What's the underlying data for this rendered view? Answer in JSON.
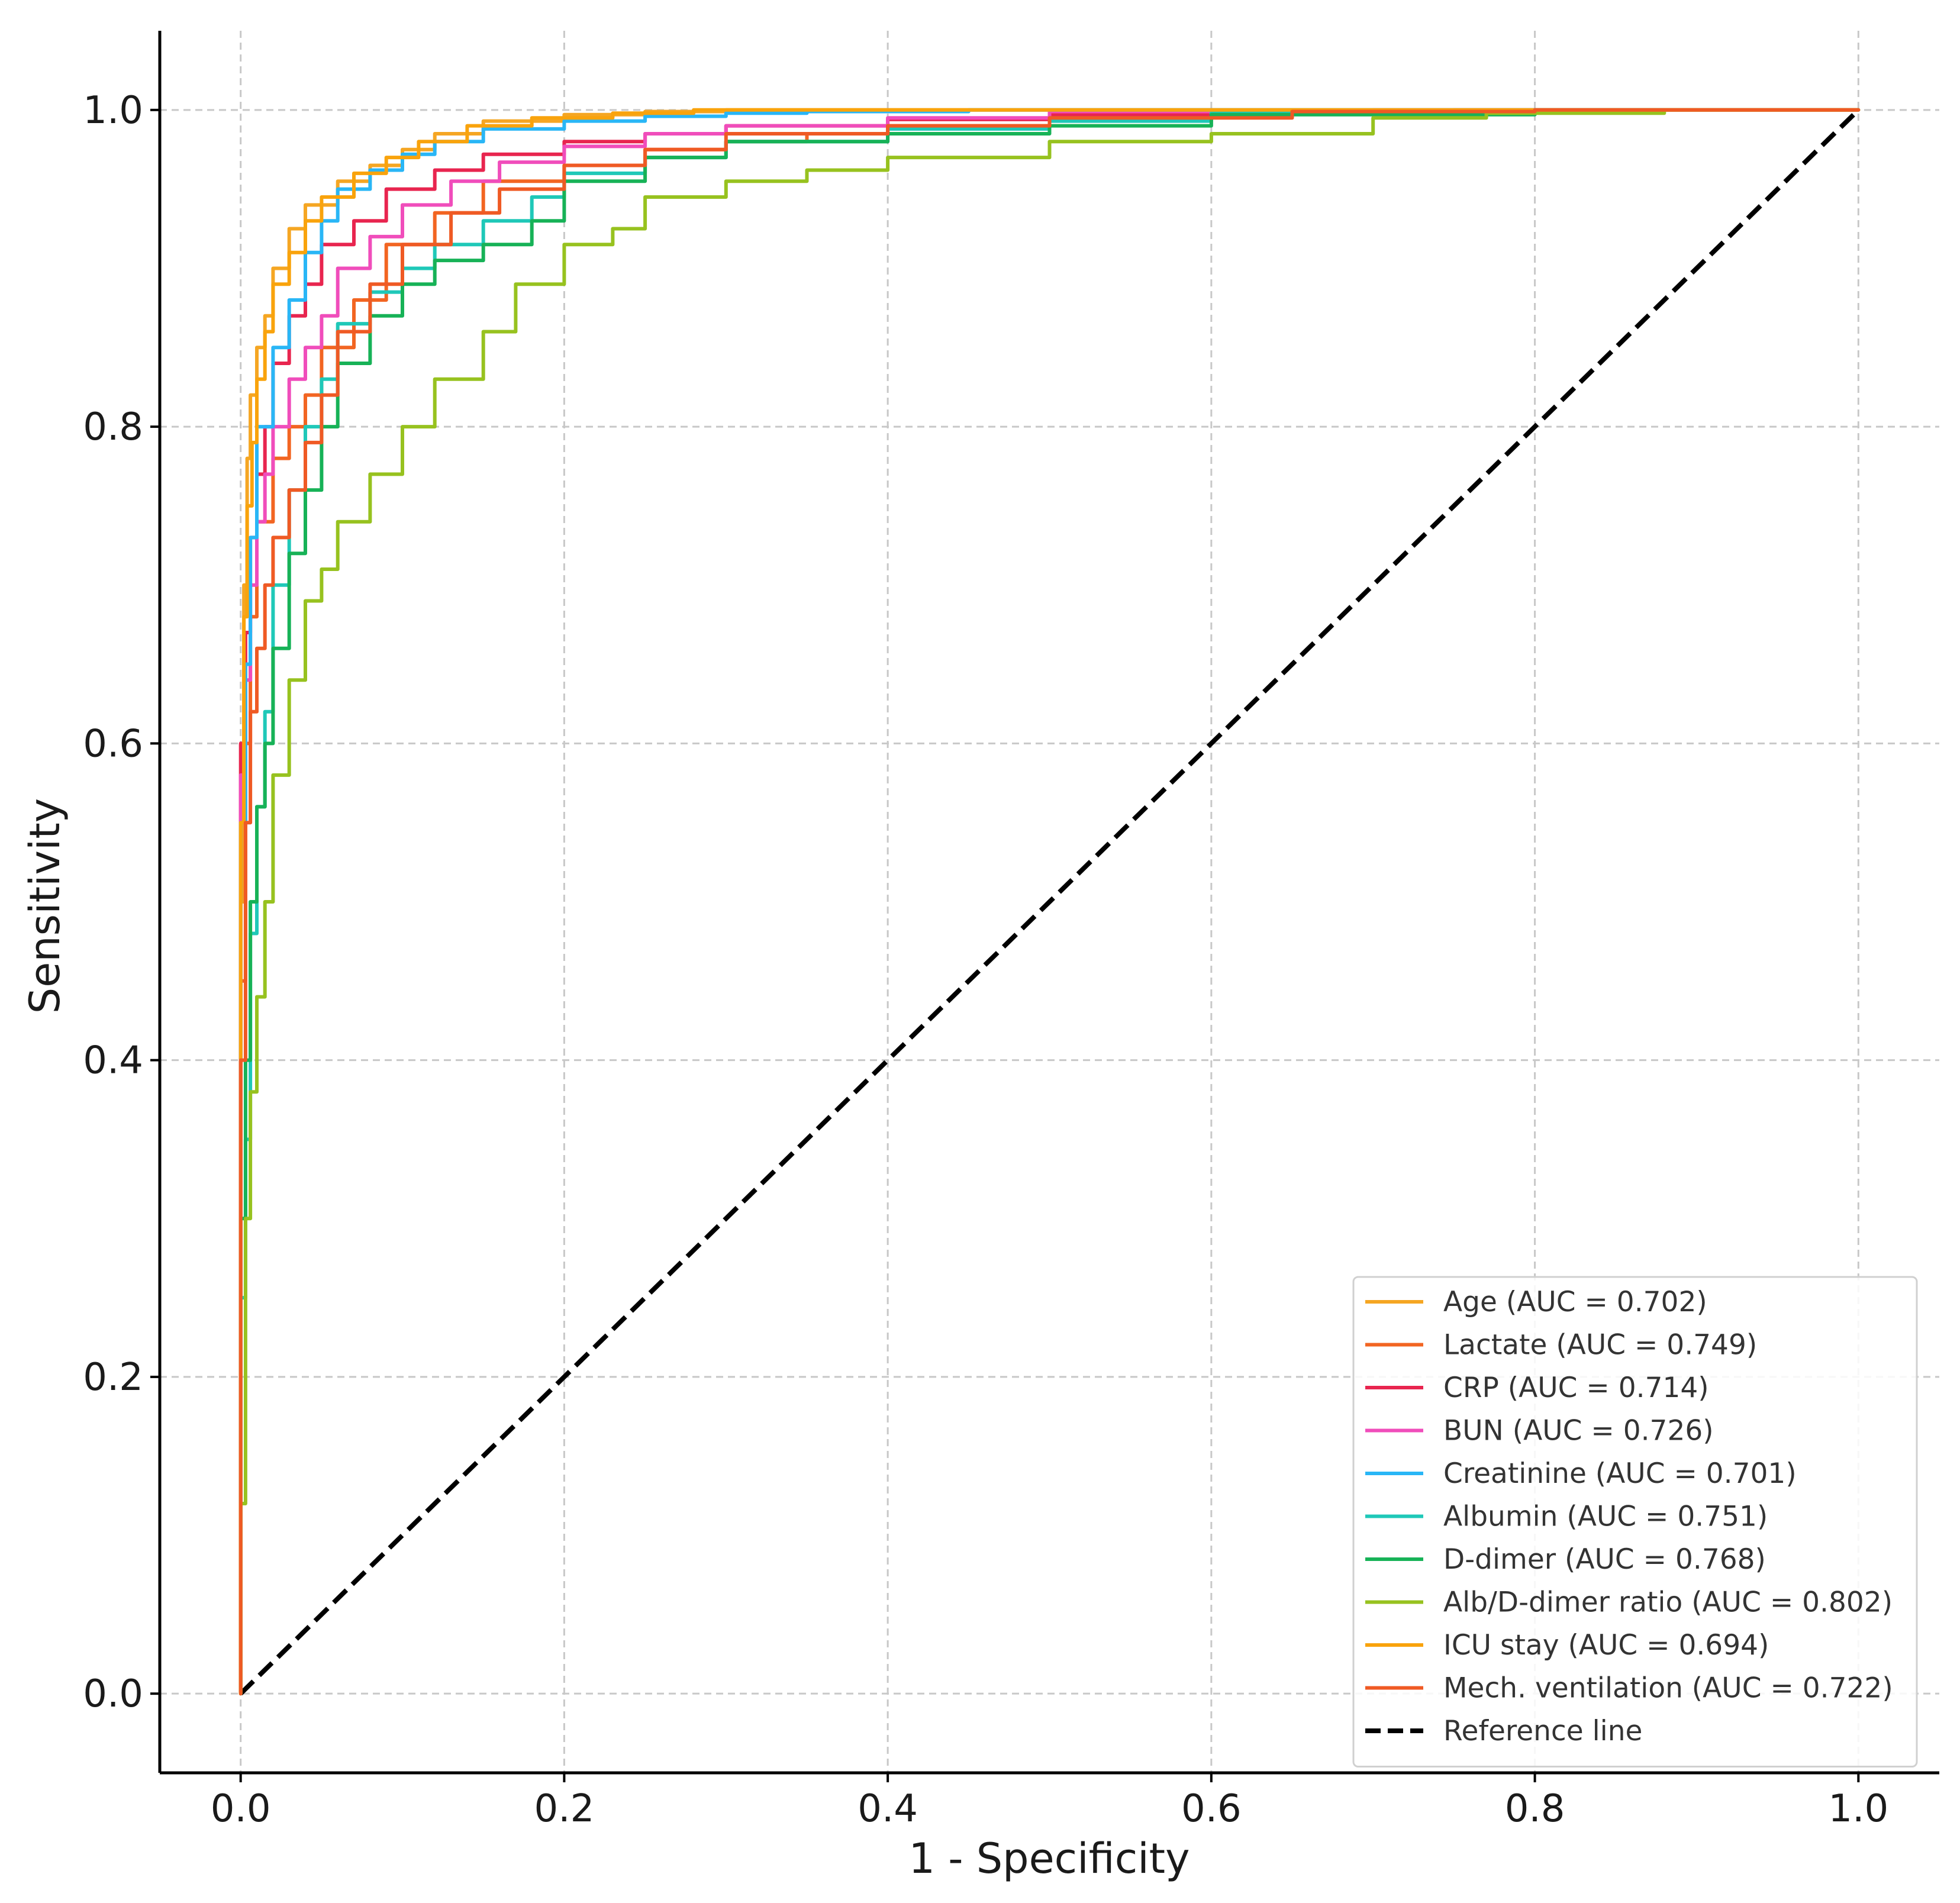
{
  "chart_data": {
    "type": "line",
    "title": "",
    "xlabel": "1 - Specificity",
    "ylabel": "Sensitivity",
    "xlim": [
      -0.05,
      1.05
    ],
    "ylim": [
      -0.05,
      1.05
    ],
    "xticks": [
      0.0,
      0.2,
      0.4,
      0.6,
      0.8,
      1.0
    ],
    "yticks": [
      0.0,
      0.2,
      0.4,
      0.6,
      0.8,
      1.0
    ],
    "xtick_labels": [
      "0.0",
      "0.2",
      "0.4",
      "0.6",
      "0.8",
      "1.0"
    ],
    "ytick_labels": [
      "0.0",
      "0.2",
      "0.4",
      "0.6",
      "0.8",
      "1.0"
    ],
    "grid": true,
    "legend_position": "bottom-right",
    "series": [
      {
        "name": "Age (AUC = 0.702)",
        "color": "#f5a623",
        "x": [
          0,
          0.002,
          0.004,
          0.006,
          0.01,
          0.015,
          0.02,
          0.03,
          0.04,
          0.06,
          0.08,
          0.1,
          0.12,
          0.15,
          0.2,
          0.25,
          0.3,
          0.4,
          0.5,
          0.7,
          1.0
        ],
        "y": [
          0,
          0.5,
          0.7,
          0.78,
          0.82,
          0.85,
          0.87,
          0.9,
          0.925,
          0.94,
          0.955,
          0.965,
          0.975,
          0.985,
          0.993,
          0.997,
          0.999,
          1.0,
          1.0,
          1.0,
          1.0
        ]
      },
      {
        "name": "Lactate (AUC = 0.749)",
        "color": "#f26522",
        "x": [
          0,
          0.003,
          0.006,
          0.01,
          0.02,
          0.03,
          0.04,
          0.05,
          0.07,
          0.09,
          0.12,
          0.15,
          0.2,
          0.25,
          0.3,
          0.35,
          0.4,
          0.5,
          0.6,
          0.75,
          1.0
        ],
        "y": [
          0,
          0.45,
          0.6,
          0.68,
          0.74,
          0.78,
          0.8,
          0.82,
          0.85,
          0.88,
          0.915,
          0.935,
          0.955,
          0.965,
          0.975,
          0.98,
          0.985,
          0.99,
          0.995,
          0.998,
          1.0
        ]
      },
      {
        "name": "CRP (AUC = 0.714)",
        "color": "#e8254f",
        "x": [
          0,
          0.003,
          0.006,
          0.01,
          0.015,
          0.02,
          0.03,
          0.04,
          0.05,
          0.07,
          0.09,
          0.12,
          0.15,
          0.2,
          0.25,
          0.3,
          0.4,
          0.5,
          0.6,
          0.75,
          1.0
        ],
        "y": [
          0,
          0.6,
          0.67,
          0.73,
          0.77,
          0.8,
          0.84,
          0.87,
          0.89,
          0.915,
          0.93,
          0.95,
          0.962,
          0.972,
          0.98,
          0.985,
          0.99,
          0.994,
          0.997,
          0.999,
          1.0
        ]
      },
      {
        "name": "BUN (AUC = 0.726)",
        "color": "#f04dbb",
        "x": [
          0,
          0.003,
          0.006,
          0.01,
          0.015,
          0.02,
          0.03,
          0.04,
          0.05,
          0.06,
          0.08,
          0.1,
          0.13,
          0.16,
          0.2,
          0.25,
          0.3,
          0.4,
          0.5,
          0.7,
          1.0
        ],
        "y": [
          0,
          0.58,
          0.64,
          0.7,
          0.74,
          0.77,
          0.8,
          0.83,
          0.85,
          0.87,
          0.9,
          0.92,
          0.94,
          0.955,
          0.967,
          0.977,
          0.985,
          0.99,
          0.995,
          0.999,
          1.0
        ]
      },
      {
        "name": "Creatinine (AUC = 0.701)",
        "color": "#29b6f6",
        "x": [
          0,
          0.003,
          0.006,
          0.01,
          0.02,
          0.03,
          0.04,
          0.05,
          0.06,
          0.08,
          0.1,
          0.12,
          0.15,
          0.2,
          0.25,
          0.3,
          0.35,
          0.45,
          0.6,
          0.8,
          1.0
        ],
        "y": [
          0,
          0.55,
          0.65,
          0.73,
          0.8,
          0.85,
          0.88,
          0.91,
          0.93,
          0.95,
          0.962,
          0.972,
          0.98,
          0.988,
          0.993,
          0.996,
          0.998,
          0.999,
          1.0,
          1.0,
          1.0
        ]
      },
      {
        "name": "Albumin (AUC = 0.751)",
        "color": "#1fc8b8",
        "x": [
          0,
          0.003,
          0.006,
          0.01,
          0.015,
          0.02,
          0.03,
          0.04,
          0.05,
          0.06,
          0.08,
          0.1,
          0.12,
          0.15,
          0.18,
          0.2,
          0.25,
          0.3,
          0.4,
          0.5,
          0.6,
          0.8,
          1.0
        ],
        "y": [
          0,
          0.25,
          0.35,
          0.48,
          0.56,
          0.62,
          0.7,
          0.76,
          0.8,
          0.83,
          0.865,
          0.885,
          0.9,
          0.915,
          0.93,
          0.945,
          0.96,
          0.97,
          0.98,
          0.988,
          0.993,
          0.998,
          1.0
        ]
      },
      {
        "name": "D-dimer (AUC = 0.768)",
        "color": "#17b257",
        "x": [
          0,
          0.003,
          0.006,
          0.01,
          0.015,
          0.02,
          0.03,
          0.04,
          0.05,
          0.06,
          0.08,
          0.1,
          0.12,
          0.15,
          0.18,
          0.2,
          0.25,
          0.3,
          0.4,
          0.5,
          0.6,
          0.8,
          1.0
        ],
        "y": [
          0,
          0.3,
          0.4,
          0.5,
          0.56,
          0.6,
          0.66,
          0.72,
          0.76,
          0.8,
          0.84,
          0.87,
          0.89,
          0.905,
          0.915,
          0.93,
          0.955,
          0.97,
          0.98,
          0.985,
          0.99,
          0.997,
          1.0
        ]
      },
      {
        "name": "Alb/D-dimer ratio (AUC = 0.802)",
        "color": "#97c21f",
        "x": [
          0,
          0.003,
          0.006,
          0.01,
          0.015,
          0.02,
          0.03,
          0.04,
          0.05,
          0.06,
          0.08,
          0.1,
          0.12,
          0.15,
          0.17,
          0.2,
          0.23,
          0.25,
          0.3,
          0.35,
          0.4,
          0.5,
          0.6,
          0.7,
          0.77,
          0.88,
          1.0
        ],
        "y": [
          0,
          0.12,
          0.3,
          0.38,
          0.44,
          0.5,
          0.58,
          0.64,
          0.69,
          0.71,
          0.74,
          0.77,
          0.8,
          0.83,
          0.86,
          0.89,
          0.915,
          0.925,
          0.945,
          0.955,
          0.962,
          0.97,
          0.98,
          0.985,
          0.995,
          0.998,
          1.0
        ]
      },
      {
        "name": "ICU stay (AUC = 0.694)",
        "color": "#f9a30c",
        "x": [
          0,
          0.002,
          0.004,
          0.007,
          0.01,
          0.015,
          0.02,
          0.03,
          0.04,
          0.05,
          0.07,
          0.09,
          0.11,
          0.14,
          0.18,
          0.23,
          0.28,
          0.35,
          0.5,
          0.7,
          1.0
        ],
        "y": [
          0,
          0.55,
          0.68,
          0.75,
          0.79,
          0.83,
          0.86,
          0.89,
          0.91,
          0.93,
          0.945,
          0.96,
          0.97,
          0.98,
          0.99,
          0.995,
          0.998,
          1.0,
          1.0,
          1.0,
          1.0
        ]
      },
      {
        "name": "Mech. ventilation (AUC = 0.722)",
        "color": "#ef5a24",
        "x": [
          0,
          0.003,
          0.006,
          0.01,
          0.015,
          0.02,
          0.03,
          0.04,
          0.05,
          0.06,
          0.08,
          0.1,
          0.13,
          0.16,
          0.2,
          0.25,
          0.3,
          0.4,
          0.5,
          0.65,
          0.8,
          1.0
        ],
        "y": [
          0,
          0.4,
          0.55,
          0.62,
          0.66,
          0.7,
          0.73,
          0.76,
          0.79,
          0.82,
          0.86,
          0.89,
          0.915,
          0.935,
          0.95,
          0.965,
          0.975,
          0.985,
          0.99,
          0.995,
          0.999,
          1.0
        ]
      }
    ],
    "reference_line": {
      "name": "Reference line",
      "color": "#000000",
      "x": [
        0.0,
        1.0
      ],
      "y": [
        0.0,
        1.0
      ]
    }
  }
}
